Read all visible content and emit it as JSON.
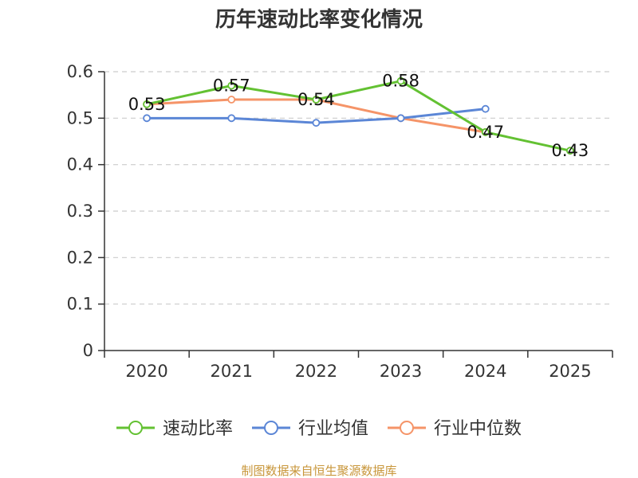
{
  "chart_data": {
    "type": "line",
    "title": "历年速动比率变化情况",
    "xlabel": "",
    "ylabel": "",
    "categories": [
      "2020",
      "2021",
      "2022",
      "2023",
      "2024",
      "2025"
    ],
    "ylim": [
      0,
      0.6
    ],
    "yticks": [
      "0",
      "0.1",
      "0.2",
      "0.3",
      "0.4",
      "0.5",
      "0.6"
    ],
    "grid": true,
    "legend_position": "bottom",
    "series": [
      {
        "name": "速动比率",
        "color": "#63c132",
        "values": [
          0.53,
          0.57,
          0.54,
          0.58,
          0.47,
          0.43
        ],
        "labels": [
          "0.53",
          "0.57",
          "0.54",
          "0.58",
          "0.47",
          "0.43"
        ]
      },
      {
        "name": "行业均值",
        "color": "#5b86d6",
        "values": [
          0.5,
          0.5,
          0.49,
          0.5,
          0.52,
          null
        ]
      },
      {
        "name": "行业中位数",
        "color": "#f59468",
        "values": [
          0.53,
          0.54,
          0.54,
          0.5,
          0.47,
          null
        ]
      }
    ]
  },
  "source_text": "制图数据来自恒生聚源数据库"
}
